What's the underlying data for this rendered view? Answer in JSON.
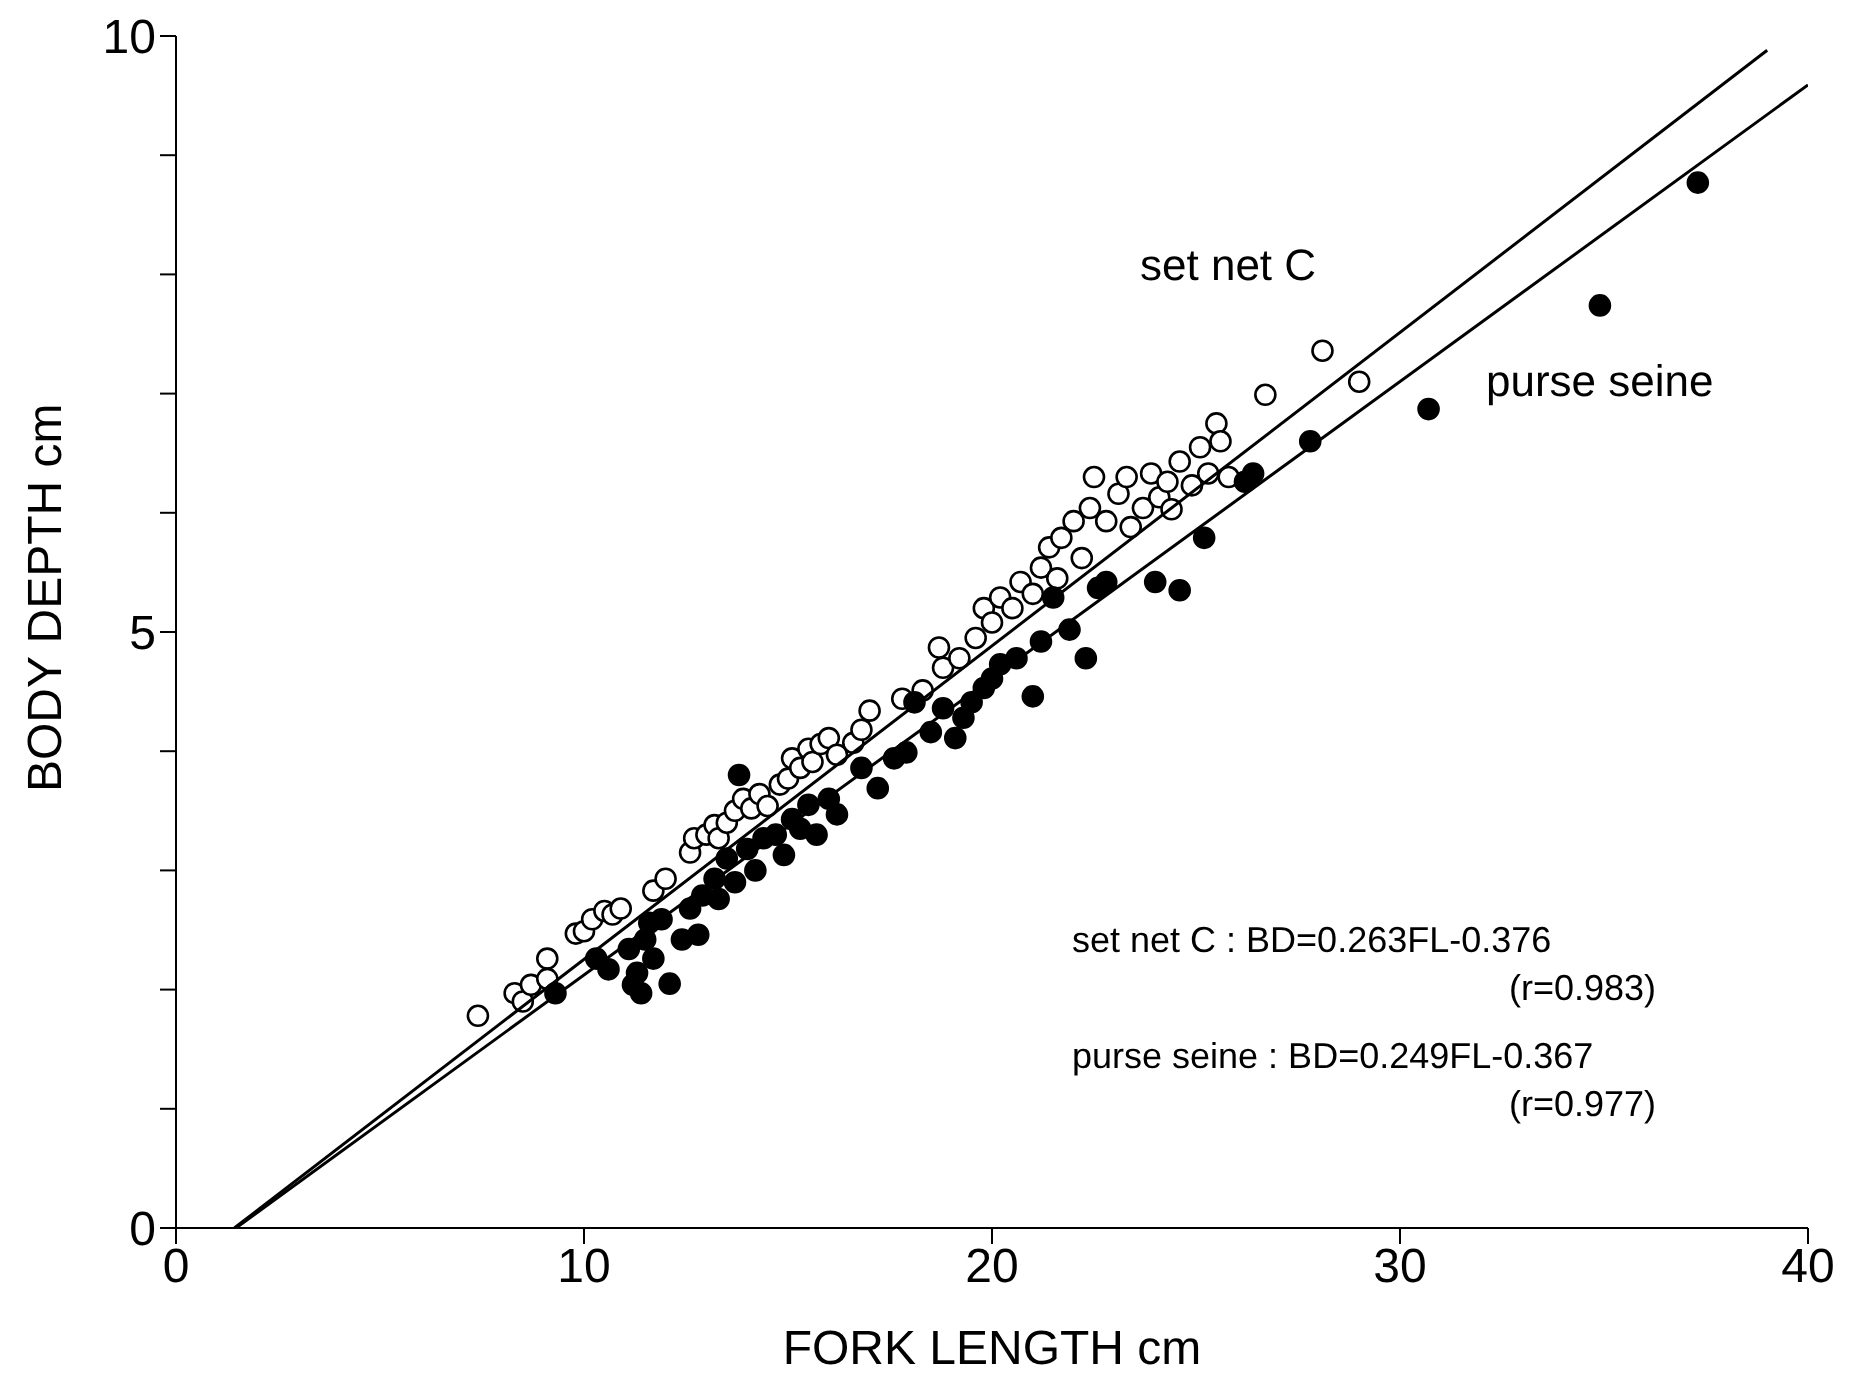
{
  "chart_data": {
    "type": "scatter",
    "xlabel": "FORK LENGTH cm",
    "ylabel": "BODY DEPTH cm",
    "xlim": [
      0,
      40
    ],
    "xticks": [
      0,
      10,
      20,
      30,
      40
    ],
    "ylim": [
      0,
      10
    ],
    "yticks": [
      0,
      {
        "value": 1,
        "label": null
      },
      {
        "value": 2,
        "label": null
      },
      {
        "value": 3,
        "label": null
      },
      {
        "value": 4,
        "label": null
      },
      5,
      {
        "value": 6,
        "label": null
      },
      {
        "value": 7,
        "label": null
      },
      {
        "value": 8,
        "label": null
      },
      {
        "value": 9,
        "label": null
      },
      10
    ],
    "marker": "circle",
    "series": [
      {
        "color": "#ffffff",
        "x": [
          7.4,
          8.3,
          8.5,
          8.7,
          9.1,
          9.1,
          9.8,
          10.0,
          10.2,
          10.5,
          10.7,
          10.9,
          11.7,
          12.0,
          12.6,
          12.7,
          13.0,
          13.2,
          13.3,
          13.5,
          13.7,
          13.9,
          14.1,
          14.3,
          14.5,
          14.8,
          15.0,
          15.1,
          15.3,
          15.5,
          15.6,
          15.8,
          16.0,
          16.2,
          16.6,
          16.8,
          17.0,
          17.8,
          18.3,
          18.7,
          18.8,
          19.2,
          19.6,
          19.8,
          20.0,
          20.2,
          20.5,
          20.7,
          21.0,
          21.2,
          21.4,
          21.6,
          21.7,
          22.0,
          22.2,
          22.4,
          22.5,
          22.8,
          23.1,
          23.3,
          23.4,
          23.7,
          23.9,
          24.1,
          24.3,
          24.4,
          24.6,
          24.9,
          25.1,
          25.3,
          25.5,
          25.6,
          25.8,
          26.7,
          28.1,
          29.0
        ],
        "values": [
          1.78,
          1.97,
          1.9,
          2.04,
          2.26,
          2.09,
          2.47,
          2.49,
          2.59,
          2.66,
          2.63,
          2.68,
          2.83,
          2.93,
          3.15,
          3.27,
          3.3,
          3.38,
          3.27,
          3.4,
          3.5,
          3.6,
          3.52,
          3.64,
          3.54,
          3.72,
          3.77,
          3.94,
          3.86,
          4.02,
          3.91,
          4.06,
          4.11,
          3.97,
          4.07,
          4.18,
          4.34,
          4.44,
          4.51,
          4.87,
          4.7,
          4.78,
          4.95,
          5.2,
          5.08,
          5.29,
          5.2,
          5.42,
          5.32,
          5.54,
          5.71,
          5.45,
          5.79,
          5.93,
          5.62,
          6.04,
          6.3,
          5.93,
          6.16,
          6.3,
          5.88,
          6.04,
          6.33,
          6.13,
          6.26,
          6.03,
          6.43,
          6.23,
          6.55,
          6.33,
          6.75,
          6.6,
          6.3,
          6.99,
          7.36,
          7.1
        ]
      },
      {
        "color": "#000000",
        "x": [
          9.3,
          10.3,
          10.6,
          11.1,
          11.2,
          11.3,
          11.4,
          11.5,
          11.6,
          11.7,
          11.9,
          12.1,
          12.4,
          12.6,
          12.8,
          12.9,
          13.2,
          13.3,
          13.5,
          13.7,
          13.8,
          14.0,
          14.2,
          14.4,
          14.7,
          14.9,
          15.1,
          15.3,
          15.5,
          15.7,
          16.0,
          16.2,
          16.8,
          17.2,
          17.6,
          17.9,
          18.1,
          18.5,
          18.8,
          19.1,
          19.3,
          19.5,
          19.8,
          20.0,
          20.2,
          20.6,
          21.0,
          21.2,
          21.5,
          21.9,
          22.3,
          22.6,
          22.8,
          24.0,
          24.6,
          25.2,
          26.2,
          26.4,
          27.8,
          30.7,
          34.9,
          37.3
        ],
        "values": [
          1.97,
          2.26,
          2.17,
          2.34,
          2.04,
          2.14,
          1.97,
          2.42,
          2.56,
          2.26,
          2.59,
          2.05,
          2.42,
          2.68,
          2.46,
          2.79,
          2.93,
          2.76,
          3.1,
          2.9,
          3.8,
          3.18,
          3.0,
          3.27,
          3.3,
          3.13,
          3.43,
          3.35,
          3.55,
          3.3,
          3.6,
          3.47,
          3.86,
          3.69,
          3.94,
          3.99,
          4.41,
          4.16,
          4.36,
          4.11,
          4.28,
          4.41,
          4.53,
          4.61,
          4.73,
          4.78,
          4.46,
          4.92,
          5.29,
          5.02,
          4.78,
          5.37,
          5.42,
          5.42,
          5.35,
          5.79,
          6.26,
          6.33,
          6.6,
          6.87,
          7.74,
          8.77
        ]
      },
      {
        "type": "line",
        "marker": "none",
        "color": "#000000",
        "x": [
          1.43,
          39.0
        ],
        "values": [
          0,
          9.88
        ]
      },
      {
        "type": "line",
        "marker": "none",
        "color": "#000000",
        "x": [
          1.47,
          40.0
        ],
        "values": [
          0,
          9.59
        ]
      }
    ],
    "annotations": [
      "set net C",
      "purse seine",
      "set net C : BD=0.263FL-0.376",
      "(r=0.983)",
      "purse seine : BD=0.249FL-0.367",
      "(r=0.977)"
    ]
  }
}
